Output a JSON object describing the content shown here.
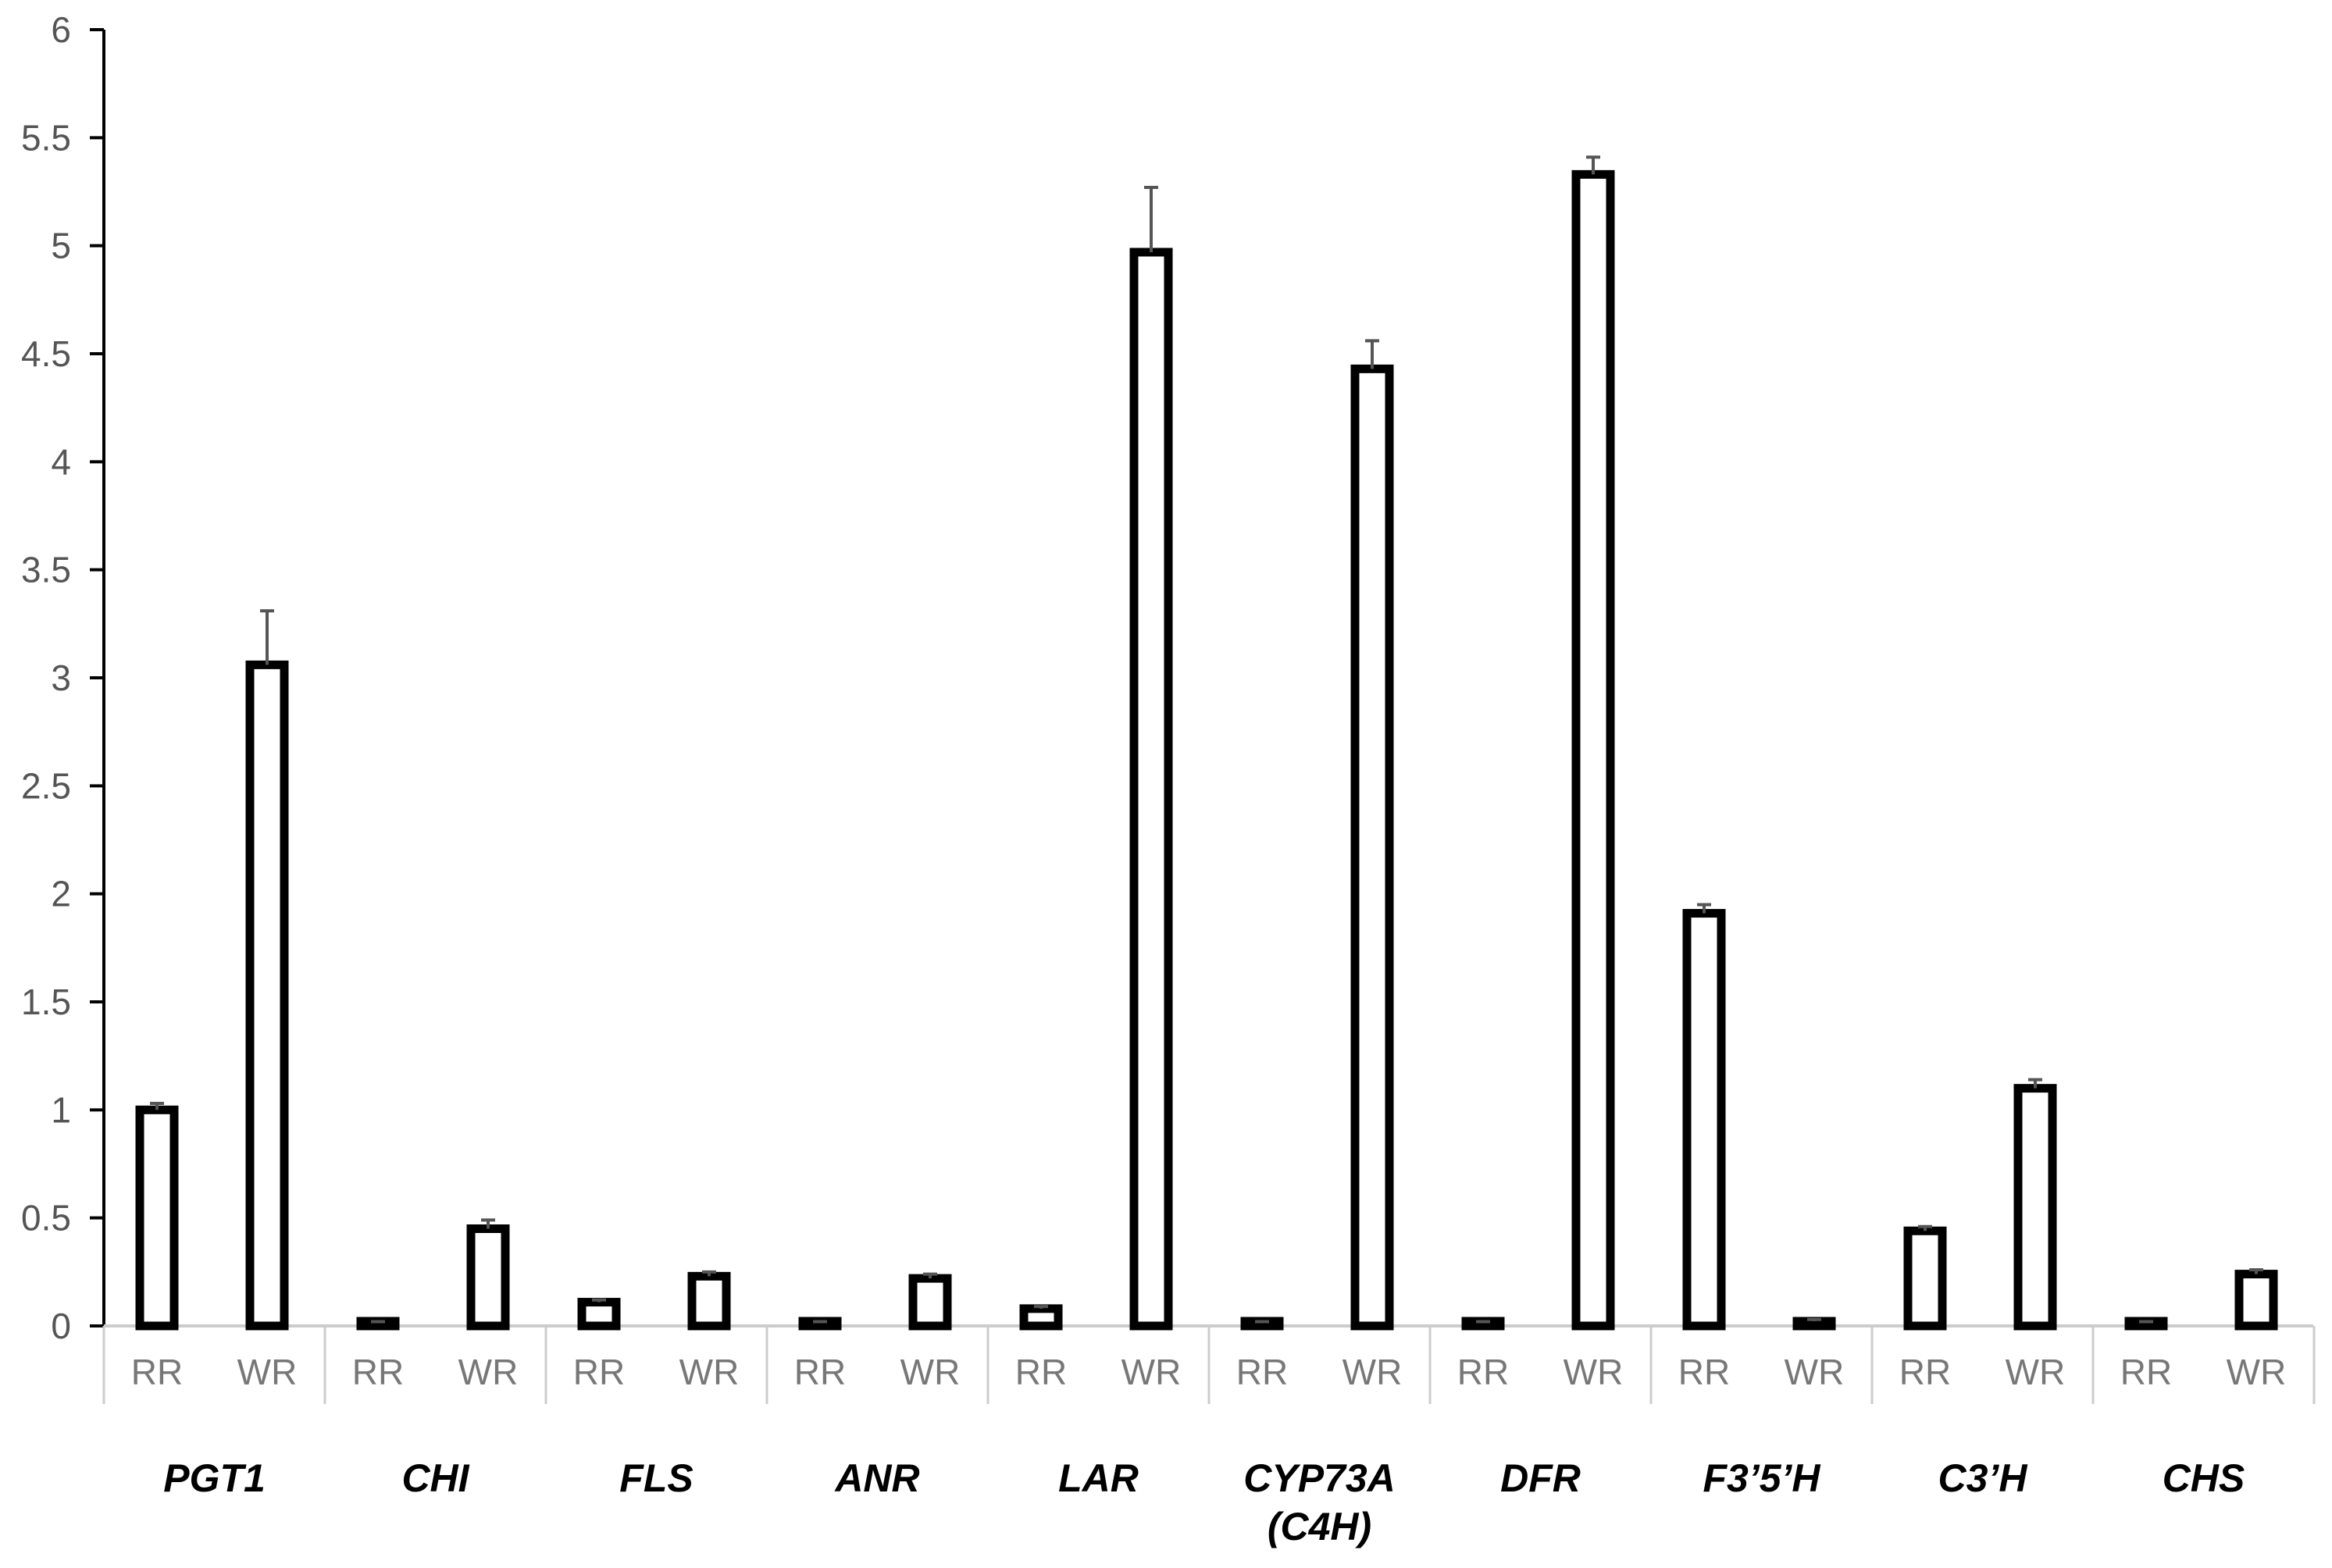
{
  "chart_data": {
    "type": "bar",
    "title": "",
    "xlabel": "",
    "ylabel": "",
    "ylim": [
      0,
      6
    ],
    "yticks": [
      "0",
      "0.5",
      "1",
      "1.5",
      "2",
      "2.5",
      "3",
      "3.5",
      "4",
      "4.5",
      "5",
      "5.5",
      "6"
    ],
    "grid": false,
    "legend": "none",
    "bar_fill": "#ffffff",
    "bar_stroke": "#000000",
    "axis_color": "#000000",
    "divider_color": "#cccccc",
    "groups": [
      {
        "label": "PGT1",
        "bars": [
          {
            "sub": "RR",
            "value": 1.0,
            "error": 0.03
          },
          {
            "sub": "WR",
            "value": 3.06,
            "error": 0.25
          }
        ]
      },
      {
        "label": "CHI",
        "bars": [
          {
            "sub": "RR",
            "value": 0.01,
            "error": 0.01
          },
          {
            "sub": "WR",
            "value": 0.45,
            "error": 0.04
          }
        ]
      },
      {
        "label": "FLS",
        "bars": [
          {
            "sub": "RR",
            "value": 0.11,
            "error": 0.01
          },
          {
            "sub": "WR",
            "value": 0.23,
            "error": 0.02
          }
        ]
      },
      {
        "label": "ANR",
        "bars": [
          {
            "sub": "RR",
            "value": 0.01,
            "error": 0.01
          },
          {
            "sub": "WR",
            "value": 0.22,
            "error": 0.02
          }
        ]
      },
      {
        "label": "LAR",
        "bars": [
          {
            "sub": "RR",
            "value": 0.08,
            "error": 0.01
          },
          {
            "sub": "WR",
            "value": 4.97,
            "error": 0.3
          }
        ]
      },
      {
        "label": [
          "CYP73A",
          "(C4H)"
        ],
        "bars": [
          {
            "sub": "RR",
            "value": 0.01,
            "error": 0.01
          },
          {
            "sub": "WR",
            "value": 4.43,
            "error": 0.13
          }
        ]
      },
      {
        "label": "DFR",
        "bars": [
          {
            "sub": "RR",
            "value": 0.01,
            "error": 0.01
          },
          {
            "sub": "WR",
            "value": 5.33,
            "error": 0.08
          }
        ]
      },
      {
        "label": "F3’5’H",
        "bars": [
          {
            "sub": "RR",
            "value": 1.91,
            "error": 0.04
          },
          {
            "sub": "WR",
            "value": 0.02,
            "error": 0.01
          }
        ]
      },
      {
        "label": "C3’H",
        "bars": [
          {
            "sub": "RR",
            "value": 0.44,
            "error": 0.02
          },
          {
            "sub": "WR",
            "value": 1.1,
            "error": 0.04
          }
        ]
      },
      {
        "label": "CHS",
        "bars": [
          {
            "sub": "RR",
            "value": 0.01,
            "error": 0.01
          },
          {
            "sub": "WR",
            "value": 0.24,
            "error": 0.02
          }
        ]
      }
    ]
  }
}
